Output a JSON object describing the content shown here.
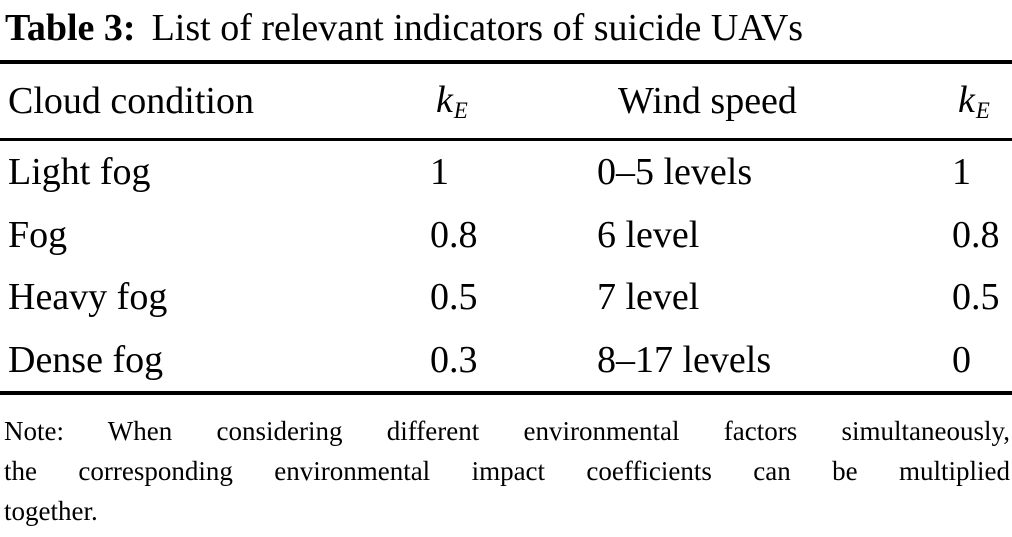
{
  "title": {
    "label": "Table 3:",
    "text": "List of relevant indicators of suicide UAVs"
  },
  "table": {
    "columns": [
      {
        "label": "Cloud condition"
      },
      {
        "label_base": "k",
        "label_sub": "E"
      },
      {
        "label": "Wind speed"
      },
      {
        "label_base": "k",
        "label_sub": "E"
      }
    ],
    "rows": [
      [
        "Light fog",
        "1",
        "0–5 levels",
        "1"
      ],
      [
        "Fog",
        "0.8",
        "6 level",
        "0.8"
      ],
      [
        "Heavy fog",
        "0.5",
        "7 level",
        "0.5"
      ],
      [
        "Dense fog",
        "0.3",
        "8–17 levels",
        "0"
      ]
    ]
  },
  "note": {
    "lines": [
      "Note: When considering different environmental factors simultaneously,",
      "the corresponding environmental impact coefficients can be multiplied",
      "together."
    ]
  },
  "colors": {
    "text": "#000000",
    "background": "#ffffff",
    "rule": "#000000"
  }
}
